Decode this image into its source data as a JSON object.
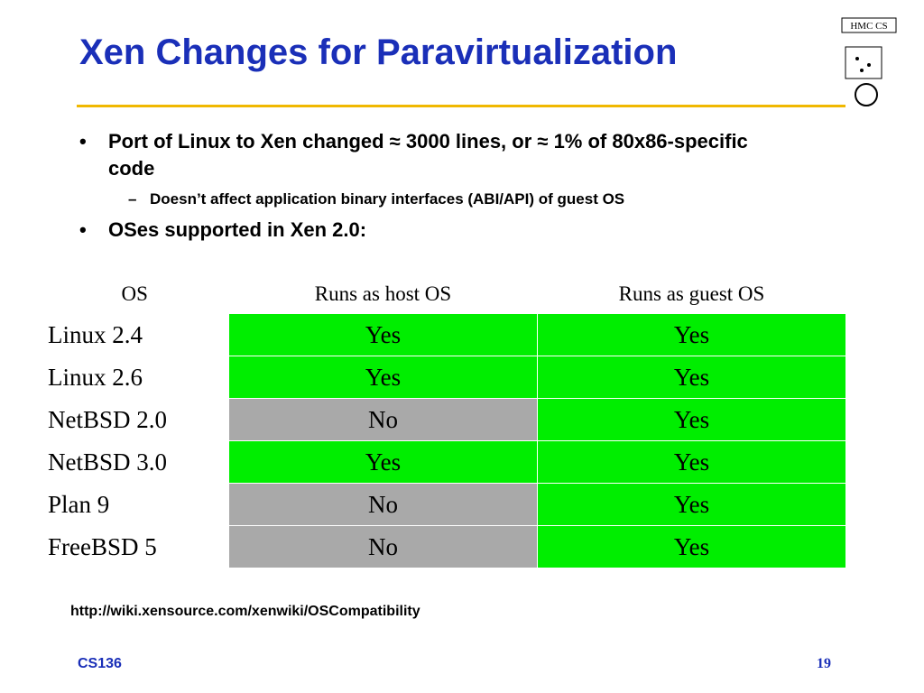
{
  "header": {
    "title": "Xen Changes for Paravirtualization",
    "logo": "HMC CS"
  },
  "bullets": [
    {
      "text": "Port of Linux to Xen changed ≈ 3000 lines, or ≈ 1% of 80x86-specific code",
      "sub": [
        "Doesn’t affect application binary interfaces (ABI/API) of guest OS"
      ]
    },
    {
      "text": "OSes supported in Xen 2.0:",
      "sub": []
    }
  ],
  "table": {
    "headers": [
      "OS",
      "Runs as host OS",
      "Runs as guest OS"
    ],
    "rows": [
      [
        "Linux 2.4",
        "Yes",
        "Yes"
      ],
      [
        "Linux 2.6",
        "Yes",
        "Yes"
      ],
      [
        "NetBSD 2.0",
        "No",
        "Yes"
      ],
      [
        "NetBSD 3.0",
        "Yes",
        "Yes"
      ],
      [
        "Plan 9",
        "No",
        "Yes"
      ],
      [
        "FreeBSD 5",
        "No",
        "Yes"
      ]
    ]
  },
  "link": "http://wiki.xensource.com/xenwiki/OSCompatibility",
  "footer": {
    "course": "CS136",
    "page": "19"
  }
}
